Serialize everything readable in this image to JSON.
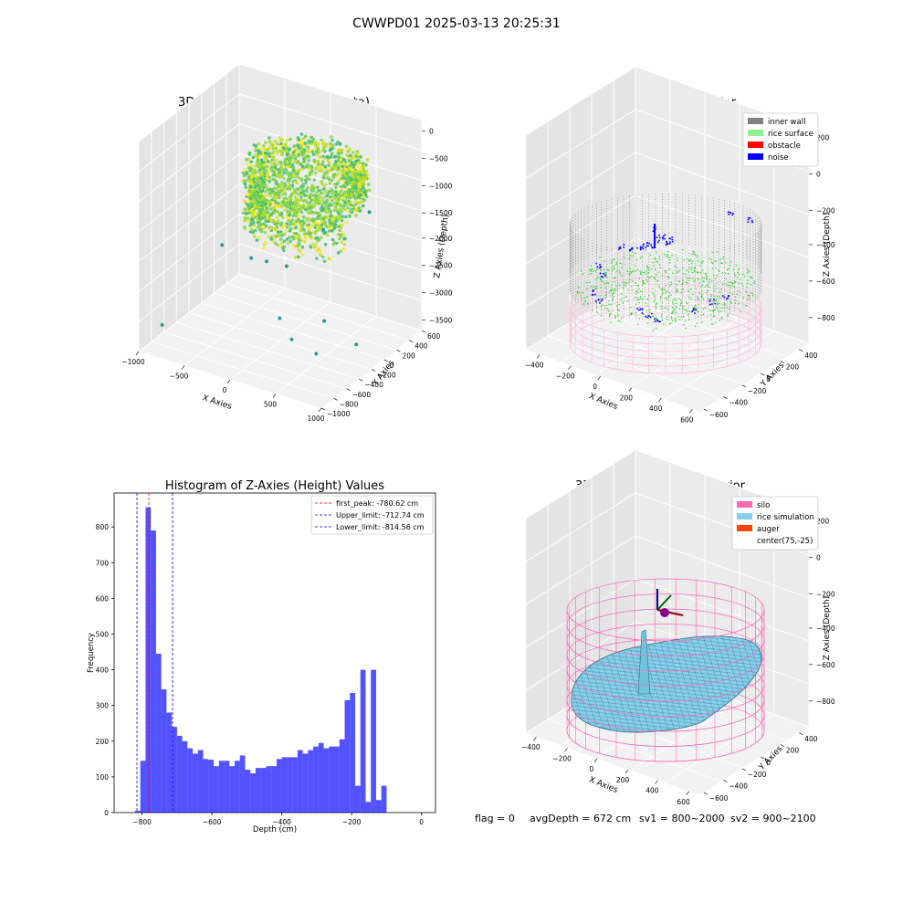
{
  "suptitle": "CWWPD01 2025-03-13 20:25:31",
  "status_line": {
    "flag": "flag = 0",
    "avg_depth": "avgDepth = 672 cm",
    "sv1": "sv1 = 800~2000",
    "sv2": "sv2 = 900~2100"
  },
  "colors": {
    "inner_wall": "#808080",
    "rice_surface": "#90ee90",
    "obstacle": "#ff0000",
    "noise": "#0000ff",
    "silo": "#ff69b4",
    "rice_simulation": "#87ceeb",
    "auger": "#ff4500",
    "histogram_bar": "#0000ff",
    "first_peak_line": "#ff0000",
    "limit_line": "#0000ff"
  },
  "chart_data": [
    {
      "type": "scatter3d",
      "title": "3D Plot of Silo Interior(row data)",
      "xlabel": "X Axies",
      "ylabel": "Y Axies",
      "zlabel": "Z Axies (Depth)",
      "x_ticks": [
        "−1000",
        "−500",
        "0",
        "500",
        "1000"
      ],
      "y_ticks": [
        "−1000",
        "−800",
        "−600",
        "−400",
        "−200",
        "0",
        "200",
        "400",
        "600"
      ],
      "z_ticks": [
        "0",
        "−500",
        "−1000",
        "−1500",
        "−2000",
        "−2500",
        "−3000",
        "−3500"
      ],
      "xlim": [
        -1000,
        1000
      ],
      "ylim": [
        -1000,
        600
      ],
      "zlim": [
        -3700,
        200
      ],
      "colormap": "viridis"
    },
    {
      "type": "scatter3d",
      "title": "3D classify of Silo Interior",
      "xlabel": "X Axies",
      "ylabel": "Y Axies",
      "zlabel": "Z Axies (Depth)",
      "x_ticks": [
        "−400",
        "−200",
        "0",
        "200",
        "400",
        "600"
      ],
      "y_ticks": [
        "−600",
        "−400",
        "−200",
        "0",
        "200",
        "400"
      ],
      "z_ticks": [
        "200",
        "0",
        "−200",
        "−400",
        "−600",
        "−800"
      ],
      "xlim": [
        -500,
        650
      ],
      "ylim": [
        -650,
        500
      ],
      "zlim": [
        -950,
        250
      ],
      "legend": [
        "inner wall",
        "rice surface",
        "obstacle",
        "noise"
      ],
      "legend_position": "upper right"
    },
    {
      "type": "bar",
      "title": "Histogram of Z-Axies (Height) Values",
      "xlabel": "Depth (cm)",
      "ylabel": "Frequency",
      "x_ticks": [
        "−800",
        "−600",
        "−400",
        "−200",
        "0"
      ],
      "y_ticks": [
        "0",
        "100",
        "200",
        "300",
        "400",
        "500",
        "600",
        "700",
        "800"
      ],
      "xlim": [
        -880,
        40
      ],
      "ylim": [
        0,
        895
      ],
      "bin_width": 15,
      "bin_start": -830,
      "values": [
        5,
        145,
        855,
        790,
        445,
        345,
        280,
        240,
        215,
        200,
        180,
        165,
        175,
        150,
        148,
        130,
        145,
        145,
        130,
        145,
        160,
        120,
        110,
        125,
        125,
        130,
        130,
        150,
        155,
        155,
        155,
        175,
        165,
        175,
        185,
        195,
        180,
        185,
        185,
        205,
        315,
        335,
        75,
        400,
        30,
        400,
        35,
        75
      ],
      "vlines": [
        {
          "label": "first_peak: -780.62 cm",
          "x": -780.62,
          "color": "#ff0000"
        },
        {
          "label": "Upper_limit: -712.74 cm",
          "x": -712.74,
          "color": "#0000ff"
        },
        {
          "label": "Lower_limit: -814.56 cm",
          "x": -814.56,
          "color": "#0000ff"
        }
      ],
      "legend_position": "upper right"
    },
    {
      "type": "surface3d",
      "title": "3D simulation of Silo Interior",
      "xlabel": "X Axies",
      "ylabel": "Y Axies",
      "zlabel": "Z Axies (Depth)",
      "x_ticks": [
        "−400",
        "−200",
        "0",
        "200",
        "400",
        "600"
      ],
      "y_ticks": [
        "−600",
        "−400",
        "−200",
        "0",
        "200",
        "400"
      ],
      "z_ticks": [
        "200",
        "0",
        "−200",
        "−400",
        "−600",
        "−800"
      ],
      "xlim": [
        -500,
        650
      ],
      "ylim": [
        -650,
        500
      ],
      "zlim": [
        -950,
        250
      ],
      "legend": [
        "silo",
        "rice simulation",
        "auger",
        "center(75,-25)"
      ],
      "legend_position": "upper right"
    }
  ]
}
